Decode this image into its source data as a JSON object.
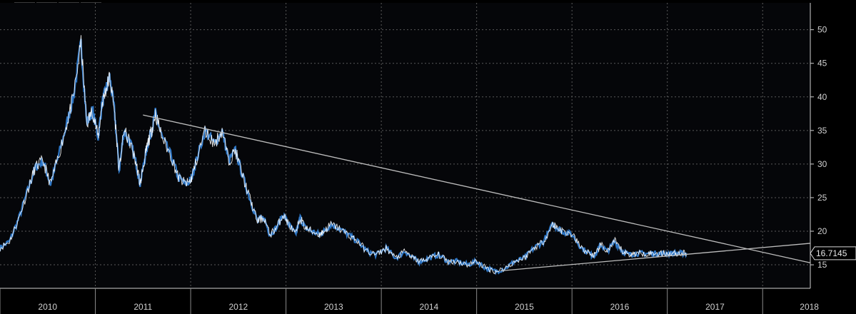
{
  "toolbar": {
    "tools": [
      {
        "icon": "crosshair-icon",
        "glyph": "✛"
      },
      {
        "icon": "draw-line-icon",
        "glyph": "⁄"
      },
      {
        "icon": "legend-list-icon",
        "glyph": "≣"
      },
      {
        "icon": "zoom-icon",
        "glyph": "⚲"
      }
    ]
  },
  "colors": {
    "background": "#050609",
    "series_dark": "#2f78c8",
    "series_light": "#ffffff",
    "grid": "#5a5a5a",
    "trendline": "#bdbdbd"
  },
  "chart_data": {
    "type": "line",
    "title": "",
    "xlabel": "",
    "ylabel": "",
    "x_tick_labels": [
      "2010",
      "2011",
      "2012",
      "2013",
      "2014",
      "2015",
      "2016",
      "2017",
      "2018"
    ],
    "y_ticks": [
      15,
      20,
      25,
      30,
      35,
      40,
      45,
      50
    ],
    "ylim": [
      11.5,
      54
    ],
    "xlim": [
      2009.75,
      2018.25
    ],
    "grid": true,
    "y_axis_side": "right",
    "last_value_label": "16.7145",
    "series": [
      {
        "x": [
          2009.75,
          2009.85,
          2009.95,
          2010.05,
          2010.12,
          2010.2,
          2010.28,
          2010.36,
          2010.45,
          2010.52,
          2010.6,
          2010.66,
          2010.72,
          2010.78,
          2010.82,
          2010.86,
          2010.9,
          2010.95,
          2011.0,
          2011.05,
          2011.12,
          2011.18,
          2011.22,
          2011.27,
          2011.3,
          2011.34,
          2011.38,
          2011.45,
          2011.55,
          2011.62,
          2011.7,
          2011.75,
          2011.8,
          2011.9,
          2012.0,
          2012.08,
          2012.15,
          2012.22,
          2012.3,
          2012.38,
          2012.45,
          2012.52,
          2012.58,
          2012.65,
          2012.72,
          2012.78,
          2012.85,
          2012.9,
          2012.95,
          2013.02,
          2013.1,
          2013.15,
          2013.22,
          2013.3,
          2013.4,
          2013.5,
          2013.6,
          2013.7,
          2013.8,
          2013.9,
          2014.0,
          2014.08,
          2014.15,
          2014.25,
          2014.35,
          2014.45,
          2014.55,
          2014.65,
          2014.75,
          2014.85,
          2014.95,
          2015.05,
          2015.15,
          2015.25,
          2015.35,
          2015.45,
          2015.55,
          2015.6,
          2015.65,
          2015.75,
          2015.85,
          2015.95,
          2016.0,
          2016.05,
          2016.12,
          2016.2,
          2016.28,
          2016.35,
          2016.42,
          2016.5,
          2016.58,
          2016.65,
          2016.72,
          2016.8,
          2016.88,
          2016.95
        ],
        "y": [
          17.5,
          18.5,
          22.0,
          26.5,
          29.5,
          30.5,
          27.0,
          31.0,
          36.0,
          40.0,
          48.0,
          36.0,
          38.0,
          34.0,
          39.0,
          41.0,
          43.0,
          38.0,
          29.0,
          35.0,
          33.0,
          30.0,
          27.0,
          31.0,
          33.0,
          35.0,
          37.5,
          34.0,
          31.0,
          28.0,
          27.0,
          27.5,
          30.0,
          35.0,
          33.0,
          35.0,
          30.5,
          32.0,
          28.0,
          24.5,
          21.5,
          22.0,
          19.5,
          20.5,
          22.5,
          21.0,
          19.5,
          22.0,
          20.5,
          20.0,
          19.5,
          20.0,
          21.0,
          20.5,
          19.5,
          18.5,
          17.0,
          16.5,
          17.5,
          16.0,
          17.0,
          16.0,
          15.5,
          16.0,
          16.5,
          15.5,
          15.5,
          15.0,
          15.5,
          14.5,
          14.0,
          14.5,
          15.5,
          16.0,
          17.5,
          18.5,
          21.0,
          20.5,
          20.0,
          19.5,
          17.5,
          16.5,
          16.5,
          18.0,
          17.0,
          18.5,
          17.0,
          16.5,
          16.7,
          16.7,
          16.7,
          16.7,
          16.7,
          16.7,
          16.7,
          16.7
        ]
      }
    ],
    "trendlines": [
      {
        "x": [
          2011.25,
          2018.25
        ],
        "y": [
          37.3,
          15.3
        ]
      },
      {
        "x": [
          2015.0,
          2018.25
        ],
        "y": [
          14.1,
          18.2
        ]
      }
    ]
  }
}
